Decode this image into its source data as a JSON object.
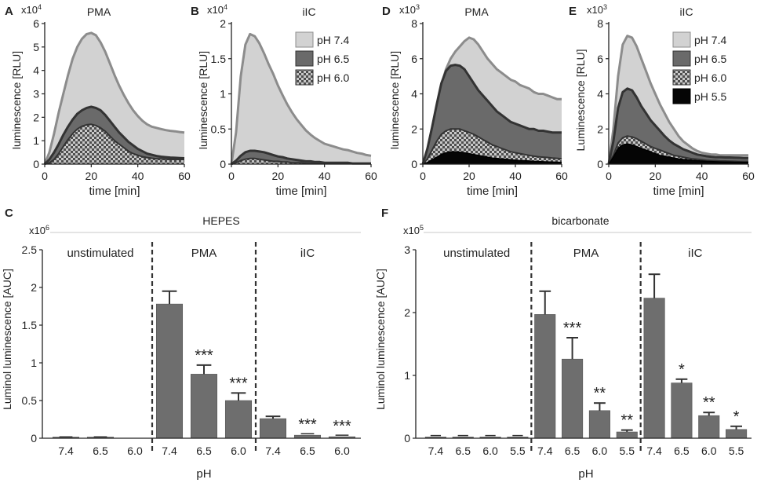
{
  "colors": {
    "light_fill": "#d2d2d2",
    "light_line": "#8c8c8c",
    "dark_fill": "#6a6a6a",
    "dark_line": "#333333",
    "black": "#050505",
    "bar": "#6e6e6e",
    "axis": "#222222"
  },
  "chart_data": [
    {
      "panel": "A",
      "type": "area",
      "title": "PMA",
      "multiplier": "x10",
      "exponent": "4",
      "xlabel": "time [min]",
      "ylabel": "luminescence [RLU]",
      "xlim": [
        0,
        60
      ],
      "ylim": [
        0,
        6
      ],
      "xticks": [
        0,
        20,
        40,
        60
      ],
      "xtick_labels": [
        "0",
        "20",
        "40",
        "60"
      ],
      "yticks": [
        0,
        1,
        2,
        3,
        4,
        5,
        6
      ],
      "ytick_labels": [
        "0",
        "1",
        "2",
        "3",
        "4",
        "5",
        "6"
      ],
      "x": [
        0,
        2,
        4,
        6,
        8,
        10,
        12,
        14,
        16,
        18,
        20,
        22,
        24,
        26,
        28,
        30,
        32,
        34,
        36,
        38,
        40,
        42,
        44,
        46,
        48,
        50,
        52,
        54,
        56,
        58,
        60
      ],
      "series": [
        {
          "name": "pH 7.4",
          "style": "light",
          "values": [
            0,
            0.5,
            1.3,
            2.2,
            3.0,
            3.8,
            4.5,
            5.0,
            5.35,
            5.55,
            5.6,
            5.5,
            5.2,
            4.8,
            4.3,
            3.8,
            3.35,
            2.95,
            2.6,
            2.3,
            2.05,
            1.85,
            1.7,
            1.6,
            1.55,
            1.5,
            1.45,
            1.42,
            1.4,
            1.37,
            1.35
          ]
        },
        {
          "name": "pH 6.5",
          "style": "dark",
          "values": [
            0,
            0.2,
            0.5,
            0.85,
            1.25,
            1.6,
            1.9,
            2.15,
            2.3,
            2.4,
            2.45,
            2.4,
            2.3,
            2.1,
            1.85,
            1.6,
            1.35,
            1.15,
            0.95,
            0.8,
            0.65,
            0.55,
            0.45,
            0.4,
            0.35,
            0.32,
            0.3,
            0.28,
            0.27,
            0.26,
            0.25
          ]
        },
        {
          "name": "pH 6.0",
          "style": "checker",
          "values": [
            0,
            0.05,
            0.2,
            0.45,
            0.75,
            1.05,
            1.3,
            1.5,
            1.62,
            1.68,
            1.7,
            1.65,
            1.55,
            1.4,
            1.2,
            1.0,
            0.85,
            0.7,
            0.55,
            0.45,
            0.38,
            0.32,
            0.28,
            0.25,
            0.23,
            0.22,
            0.21,
            0.2,
            0.2,
            0.2,
            0.2
          ]
        }
      ]
    },
    {
      "panel": "B",
      "type": "area",
      "title": "iIC",
      "multiplier": "x10",
      "exponent": "4",
      "xlabel": "time [min]",
      "ylabel": "luminescence [RLU]",
      "xlim": [
        0,
        60
      ],
      "ylim": [
        0,
        2
      ],
      "xticks": [
        0,
        20,
        40,
        60
      ],
      "xtick_labels": [
        "0",
        "20",
        "40",
        "60"
      ],
      "yticks": [
        0,
        0.5,
        1,
        1.5,
        2
      ],
      "ytick_labels": [
        "0",
        "0.5",
        "1",
        "1.5",
        "2"
      ],
      "x": [
        0,
        2,
        4,
        6,
        8,
        10,
        12,
        14,
        16,
        18,
        20,
        22,
        24,
        26,
        28,
        30,
        32,
        34,
        36,
        38,
        40,
        42,
        44,
        46,
        48,
        50,
        52,
        54,
        56,
        58,
        60
      ],
      "legend": [
        "pH 7.4",
        "pH 6.5",
        "pH 6.0"
      ],
      "series": [
        {
          "name": "pH 7.4",
          "style": "light",
          "values": [
            0,
            0.45,
            1.25,
            1.7,
            1.85,
            1.82,
            1.72,
            1.58,
            1.42,
            1.28,
            1.12,
            0.98,
            0.85,
            0.74,
            0.64,
            0.56,
            0.48,
            0.42,
            0.37,
            0.33,
            0.29,
            0.27,
            0.25,
            0.23,
            0.21,
            0.2,
            0.18,
            0.16,
            0.15,
            0.13,
            0.12
          ]
        },
        {
          "name": "pH 6.5",
          "style": "dark",
          "values": [
            0,
            0.05,
            0.12,
            0.17,
            0.19,
            0.19,
            0.18,
            0.17,
            0.15,
            0.13,
            0.11,
            0.1,
            0.08,
            0.07,
            0.06,
            0.05,
            0.04,
            0.04,
            0.03,
            0.03,
            0.02,
            0.02,
            0.02,
            0.02,
            0.02,
            0.02,
            0.01,
            0.01,
            0.01,
            0.01,
            0.01
          ]
        },
        {
          "name": "pH 6.0",
          "style": "checker",
          "values": [
            0,
            0.02,
            0.05,
            0.07,
            0.08,
            0.08,
            0.07,
            0.06,
            0.05,
            0.04,
            0.04,
            0.03,
            0.03,
            0.02,
            0.02,
            0.02,
            0.01,
            0.01,
            0.01,
            0.01,
            0.01,
            0.01,
            0.01,
            0.01,
            0.01,
            0.01,
            0.01,
            0.01,
            0.01,
            0.01,
            0.01
          ]
        }
      ]
    },
    {
      "panel": "D",
      "type": "area",
      "title": "PMA",
      "multiplier": "x10",
      "exponent": "3",
      "xlabel": "time [min]",
      "ylabel": "luminescence [RLU]",
      "xlim": [
        0,
        60
      ],
      "ylim": [
        0,
        8
      ],
      "xticks": [
        0,
        20,
        40,
        60
      ],
      "xtick_labels": [
        "0",
        "20",
        "40",
        "60"
      ],
      "yticks": [
        0,
        2,
        4,
        6,
        8
      ],
      "ytick_labels": [
        "0",
        "2",
        "4",
        "6",
        "8"
      ],
      "x": [
        0,
        2,
        4,
        6,
        8,
        10,
        12,
        14,
        16,
        18,
        20,
        22,
        24,
        26,
        28,
        30,
        32,
        34,
        36,
        38,
        40,
        42,
        44,
        46,
        48,
        50,
        52,
        54,
        56,
        58,
        60
      ],
      "series": [
        {
          "name": "pH 7.4",
          "style": "light",
          "values": [
            0,
            0.8,
            2.0,
            3.3,
            4.5,
            5.4,
            6.0,
            6.4,
            6.7,
            7.0,
            7.2,
            7.1,
            6.8,
            6.4,
            6.0,
            5.7,
            5.4,
            5.2,
            5.0,
            4.8,
            4.7,
            4.5,
            4.4,
            4.3,
            4.1,
            4.0,
            4.0,
            3.9,
            3.8,
            3.7,
            3.7
          ]
        },
        {
          "name": "pH 6.5",
          "style": "dark",
          "values": [
            0,
            0.9,
            2.1,
            3.4,
            4.6,
            5.3,
            5.6,
            5.65,
            5.6,
            5.4,
            5.0,
            4.6,
            4.2,
            3.9,
            3.6,
            3.3,
            3.0,
            2.8,
            2.6,
            2.4,
            2.3,
            2.2,
            2.1,
            2.0,
            2.0,
            1.9,
            1.9,
            1.85,
            1.8,
            1.8,
            1.8
          ]
        },
        {
          "name": "pH 6.0",
          "style": "checker",
          "values": [
            0,
            0.3,
            0.8,
            1.3,
            1.7,
            1.9,
            2.0,
            2.0,
            2.0,
            1.9,
            1.8,
            1.7,
            1.55,
            1.4,
            1.25,
            1.1,
            1.0,
            0.9,
            0.8,
            0.7,
            0.65,
            0.6,
            0.55,
            0.5,
            0.45,
            0.42,
            0.4,
            0.38,
            0.35,
            0.33,
            0.3
          ]
        },
        {
          "name": "pH 5.5",
          "style": "black",
          "values": [
            0,
            0.1,
            0.25,
            0.4,
            0.55,
            0.65,
            0.7,
            0.7,
            0.68,
            0.65,
            0.6,
            0.55,
            0.5,
            0.45,
            0.4,
            0.35,
            0.32,
            0.3,
            0.28,
            0.25,
            0.23,
            0.2,
            0.2,
            0.18,
            0.16,
            0.15,
            0.14,
            0.13,
            0.12,
            0.11,
            0.1
          ]
        }
      ]
    },
    {
      "panel": "E",
      "type": "area",
      "title": "iIC",
      "multiplier": "x10",
      "exponent": "3",
      "xlabel": "time [min]",
      "ylabel": "Luminescence [RLU]",
      "xlim": [
        0,
        60
      ],
      "ylim": [
        0,
        8
      ],
      "xticks": [
        0,
        20,
        40,
        60
      ],
      "xtick_labels": [
        "0",
        "20",
        "40",
        "60"
      ],
      "yticks": [
        0,
        2,
        4,
        6,
        8
      ],
      "ytick_labels": [
        "0",
        "2",
        "4",
        "6",
        "8"
      ],
      "x": [
        0,
        2,
        4,
        6,
        8,
        10,
        12,
        14,
        16,
        18,
        20,
        22,
        24,
        26,
        28,
        30,
        32,
        34,
        36,
        38,
        40,
        42,
        44,
        46,
        48,
        50,
        52,
        54,
        56,
        58,
        60
      ],
      "legend": [
        "pH 7.4",
        "pH 6.5",
        "pH 6.0",
        "pH 5.5"
      ],
      "series": [
        {
          "name": "pH 7.4",
          "style": "light",
          "values": [
            0,
            2.0,
            5.0,
            6.8,
            7.3,
            7.2,
            6.7,
            6.0,
            5.3,
            4.6,
            4.0,
            3.4,
            2.9,
            2.4,
            2.0,
            1.6,
            1.3,
            1.1,
            0.9,
            0.75,
            0.65,
            0.6,
            0.55,
            0.55,
            0.5,
            0.5,
            0.5,
            0.5,
            0.5,
            0.5,
            0.5
          ]
        },
        {
          "name": "pH 6.5",
          "style": "dark",
          "values": [
            0,
            1.3,
            3.2,
            4.1,
            4.3,
            4.2,
            3.8,
            3.3,
            2.9,
            2.5,
            2.2,
            1.9,
            1.6,
            1.35,
            1.15,
            1.0,
            0.85,
            0.75,
            0.65,
            0.55,
            0.5,
            0.45,
            0.42,
            0.4,
            0.4,
            0.38,
            0.38,
            0.37,
            0.36,
            0.35,
            0.35
          ]
        },
        {
          "name": "pH 6.0",
          "style": "checker",
          "values": [
            0,
            0.5,
            1.2,
            1.5,
            1.6,
            1.55,
            1.45,
            1.3,
            1.15,
            1.0,
            0.9,
            0.8,
            0.7,
            0.6,
            0.5,
            0.45,
            0.4,
            0.35,
            0.3,
            0.28,
            0.25,
            0.22,
            0.2,
            0.2,
            0.18,
            0.18,
            0.17,
            0.16,
            0.15,
            0.15,
            0.15
          ]
        },
        {
          "name": "pH 5.5",
          "style": "black",
          "values": [
            0,
            0.4,
            0.9,
            1.1,
            1.15,
            1.1,
            1.0,
            0.9,
            0.8,
            0.7,
            0.6,
            0.5,
            0.45,
            0.4,
            0.35,
            0.3,
            0.27,
            0.25,
            0.22,
            0.2,
            0.18,
            0.16,
            0.15,
            0.14,
            0.13,
            0.12,
            0.12,
            0.11,
            0.11,
            0.1,
            0.1
          ]
        }
      ]
    },
    {
      "panel": "C",
      "type": "bar",
      "title": "HEPES",
      "multiplier": "x10",
      "exponent": "6",
      "xlabel": "pH",
      "ylabel": "Luminol luminescence [AUC]",
      "ylim": [
        0,
        2.5
      ],
      "yticks": [
        0,
        0.5,
        1,
        1.5,
        2,
        2.5
      ],
      "ytick_labels": [
        "0",
        "0.5",
        "1",
        "1.5",
        "2",
        "2.5"
      ],
      "groups": [
        "unstimulated",
        "PMA",
        "iIC"
      ],
      "group_sizes": [
        3,
        3,
        3
      ],
      "categories": [
        "7.4",
        "6.5",
        "6.0",
        "7.4",
        "6.5",
        "6.0",
        "7.4",
        "6.5",
        "6.0"
      ],
      "values": [
        0.005,
        0.005,
        0,
        1.78,
        0.85,
        0.5,
        0.26,
        0.04,
        0.02
      ],
      "errors": [
        0.003,
        0.003,
        0,
        0.17,
        0.12,
        0.1,
        0.03,
        0.01,
        0.01
      ],
      "annotations": [
        "",
        "",
        "",
        "",
        "***",
        "***",
        "",
        "***",
        "***"
      ]
    },
    {
      "panel": "F",
      "type": "bar",
      "title": "bicarbonate",
      "multiplier": "x10",
      "exponent": "5",
      "xlabel": "pH",
      "ylabel": "Luminol luminescence [AUC]",
      "ylim": [
        0,
        3
      ],
      "yticks": [
        0,
        1,
        2,
        3
      ],
      "ytick_labels": [
        "0",
        "1",
        "2",
        "3"
      ],
      "groups": [
        "unstimulated",
        "PMA",
        "iIC"
      ],
      "group_sizes": [
        4,
        4,
        4
      ],
      "categories": [
        "7.4",
        "6.5",
        "6.0",
        "5.5",
        "7.4",
        "6.5",
        "6.0",
        "5.5",
        "7.4",
        "6.5",
        "6.0",
        "5.5"
      ],
      "values": [
        0.02,
        0.02,
        0.02,
        0.02,
        1.97,
        1.26,
        0.44,
        0.1,
        2.23,
        0.88,
        0.36,
        0.14
      ],
      "errors": [
        0.01,
        0.01,
        0.01,
        0.01,
        0.37,
        0.34,
        0.12,
        0.03,
        0.38,
        0.06,
        0.05,
        0.05
      ],
      "annotations": [
        "",
        "",
        "",
        "",
        "",
        "***",
        "**",
        "**",
        "",
        "*",
        "**",
        "*"
      ]
    }
  ]
}
